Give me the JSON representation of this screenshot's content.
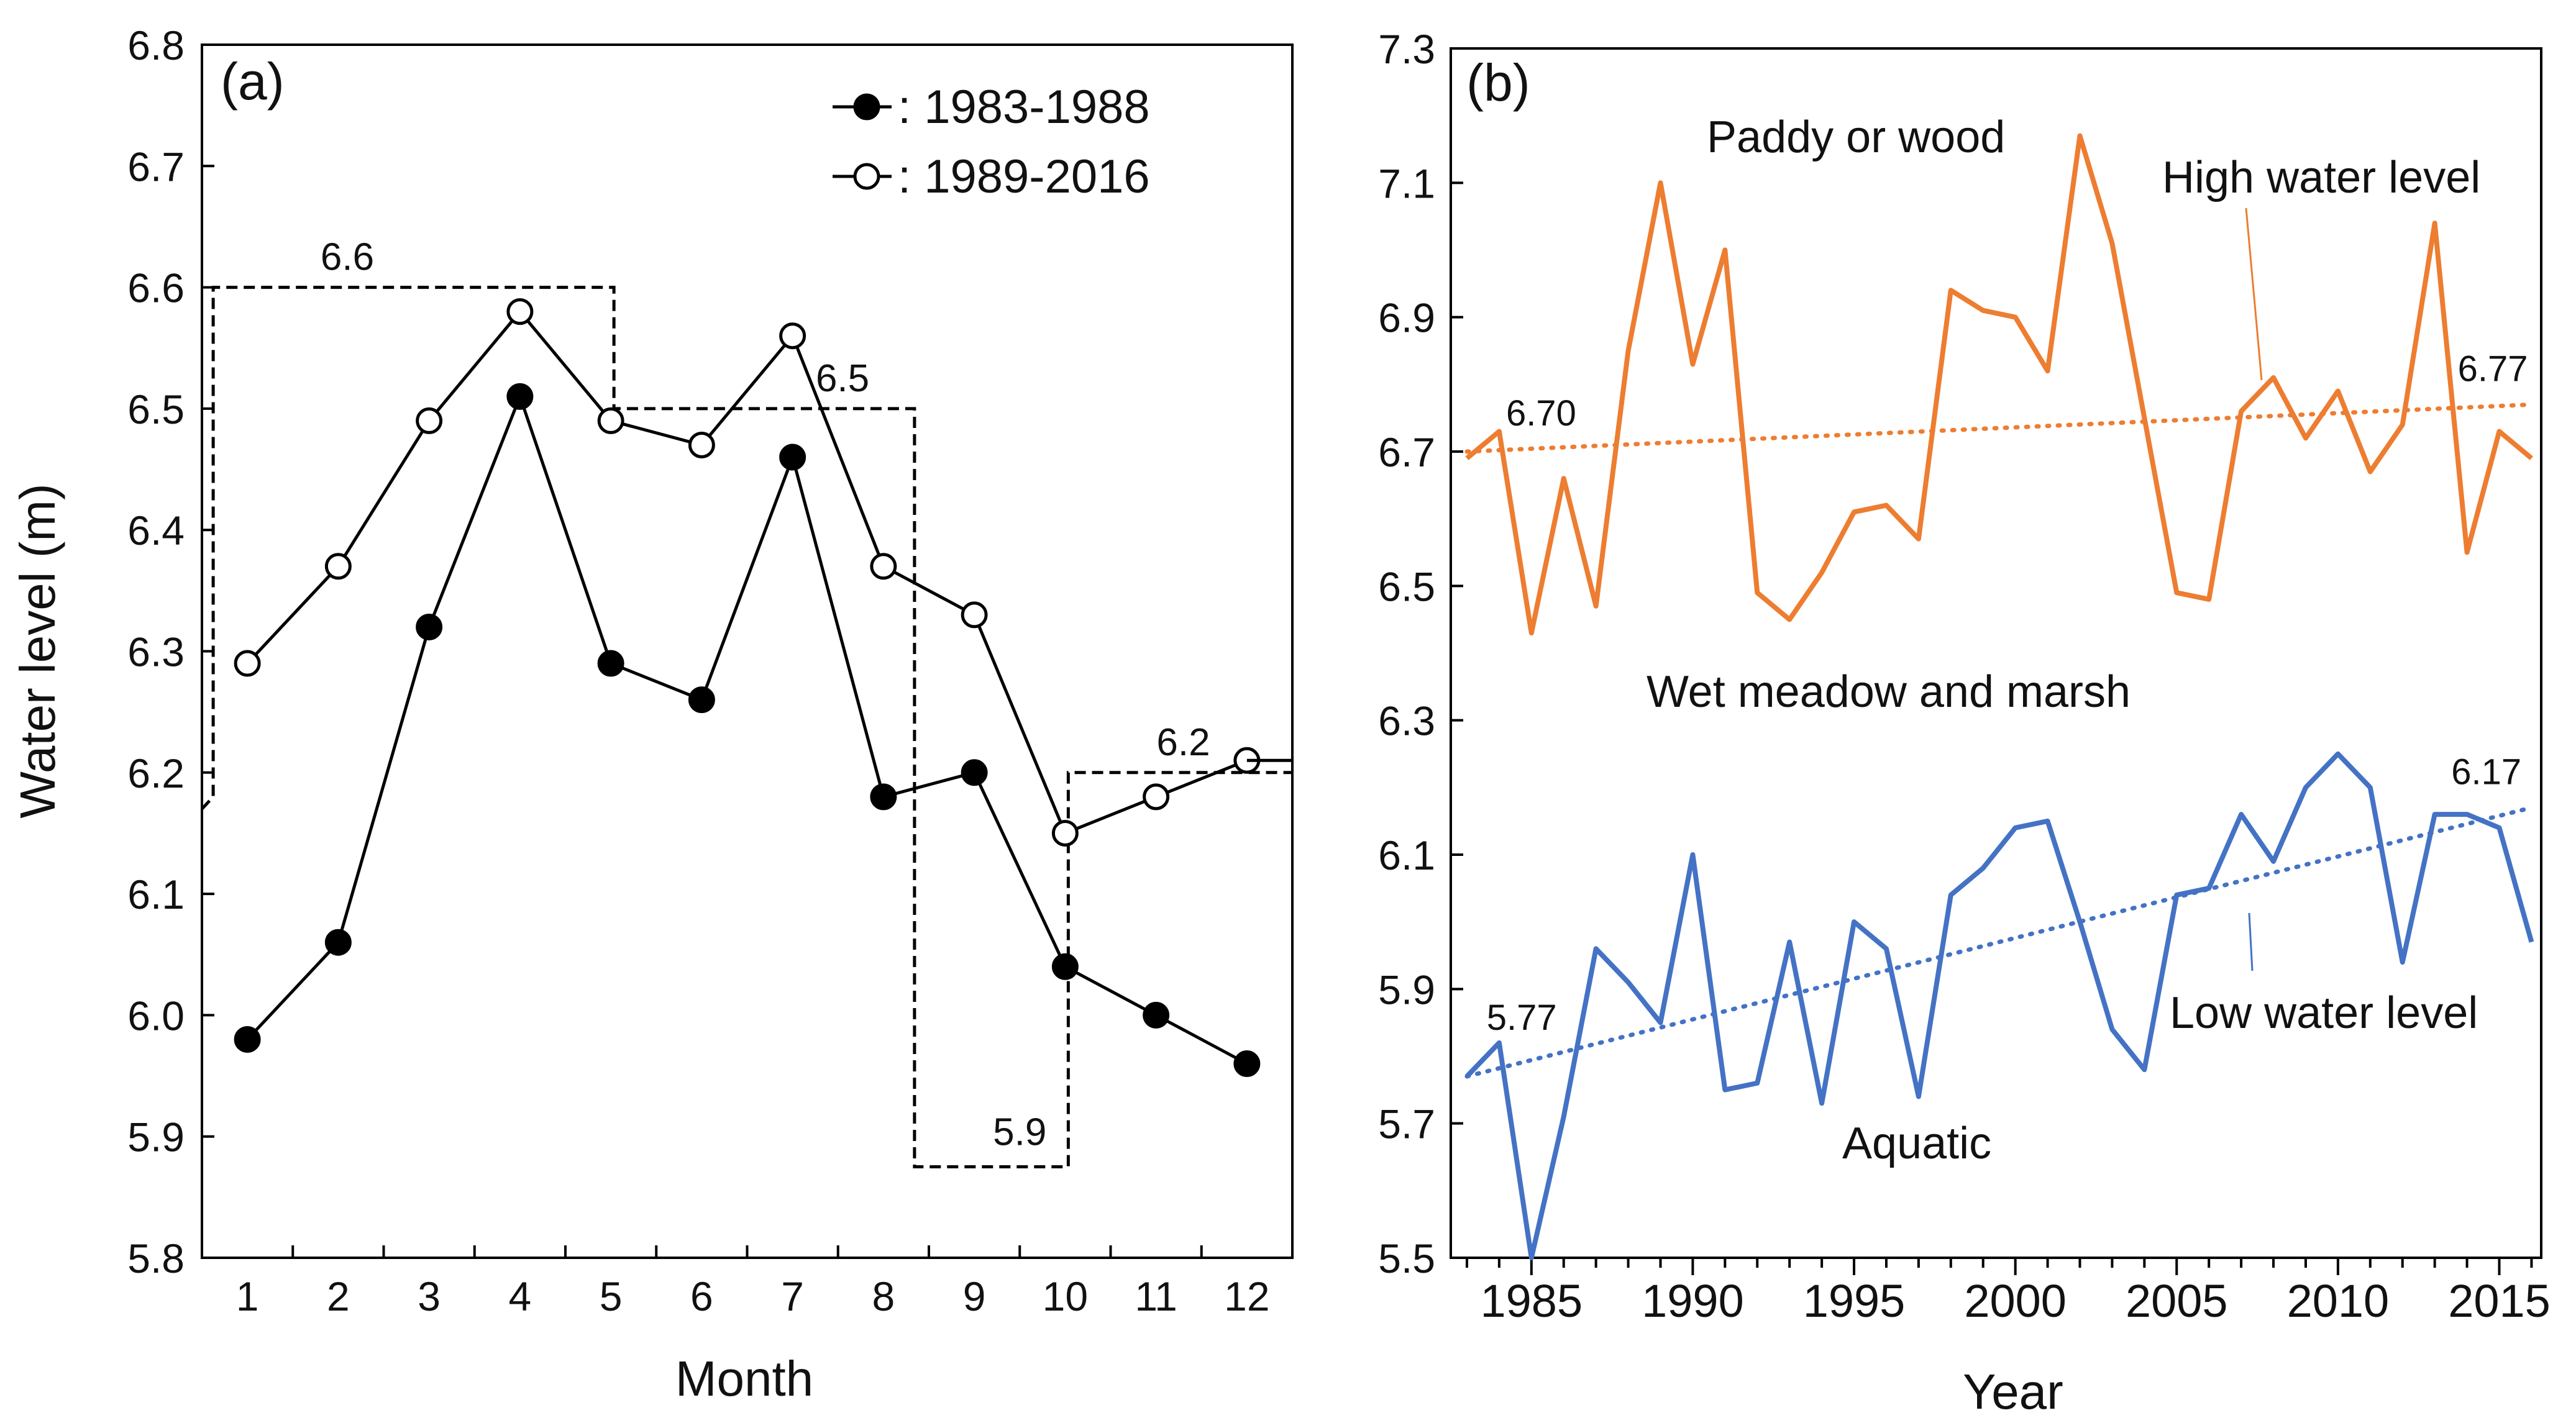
{
  "chart_data": [
    {
      "panel_label": "(a)",
      "type": "line",
      "xlabel": "Month",
      "ylabel": "Water level (m)",
      "ylim": [
        5.8,
        6.8
      ],
      "yticks": [
        "5.8",
        "5.9",
        "6.0",
        "6.1",
        "6.2",
        "6.3",
        "6.4",
        "6.5",
        "6.6",
        "6.7",
        "6.8"
      ],
      "categories": [
        "1",
        "2",
        "3",
        "4",
        "5",
        "6",
        "7",
        "8",
        "9",
        "10",
        "11",
        "12"
      ],
      "series": [
        {
          "name": "1983-1988",
          "legend_label": ": 1983-1988",
          "marker": "filled",
          "values": [
            5.98,
            6.06,
            6.32,
            6.51,
            6.29,
            6.26,
            6.46,
            6.18,
            6.2,
            6.04,
            6.0,
            5.96
          ]
        },
        {
          "name": "1989-2016",
          "legend_label": ": 1989-2016",
          "marker": "open",
          "values": [
            6.29,
            6.37,
            6.49,
            6.58,
            6.49,
            6.47,
            6.56,
            6.37,
            6.33,
            6.15,
            6.18,
            6.21
          ]
        }
      ],
      "reference_levels": [
        {
          "label": "6.6",
          "value": 6.6,
          "months": [
            1,
            5
          ]
        },
        {
          "label": "6.5",
          "value": 6.5,
          "months": [
            6,
            8
          ]
        },
        {
          "label": "5.9",
          "value": 5.875,
          "months": [
            9,
            10
          ]
        },
        {
          "label": "6.2",
          "value": 6.2,
          "months": [
            11,
            12
          ]
        }
      ]
    },
    {
      "panel_label": "(b)",
      "type": "line",
      "xlabel": "Year",
      "ylabel": "",
      "xlim": [
        1982.5,
        2016.3
      ],
      "xticks": [
        "1985",
        "1990",
        "1995",
        "2000",
        "2005",
        "2010",
        "2015"
      ],
      "ylim": [
        5.5,
        7.3
      ],
      "yticks": [
        "5.5",
        "5.7",
        "5.9",
        "6.1",
        "6.3",
        "6.5",
        "6.7",
        "6.9",
        "7.1",
        "7.3"
      ],
      "x": [
        1983,
        1984,
        1985,
        1986,
        1987,
        1988,
        1989,
        1990,
        1991,
        1992,
        1993,
        1994,
        1995,
        1996,
        1997,
        1998,
        1999,
        2000,
        2001,
        2002,
        2003,
        2004,
        2005,
        2006,
        2007,
        2008,
        2009,
        2010,
        2011,
        2012,
        2013,
        2014,
        2015,
        2016
      ],
      "series": [
        {
          "name": "High water level",
          "color": "#ed7d31",
          "values": [
            6.69,
            6.73,
            6.43,
            6.66,
            6.47,
            6.85,
            7.1,
            6.83,
            7.0,
            6.49,
            6.45,
            6.52,
            6.61,
            6.62,
            6.57,
            6.94,
            6.91,
            6.9,
            6.82,
            7.17,
            7.01,
            6.75,
            6.49,
            6.48,
            6.76,
            6.81,
            6.72,
            6.79,
            6.67,
            6.74,
            7.04,
            6.55,
            6.73,
            6.69
          ]
        },
        {
          "name": "Low water level",
          "color": "#4472c4",
          "values": [
            5.77,
            5.82,
            5.5,
            5.71,
            5.96,
            5.91,
            5.85,
            6.1,
            5.75,
            5.76,
            5.97,
            5.73,
            6.0,
            5.96,
            5.74,
            6.04,
            6.08,
            6.14,
            6.15,
            6.0,
            5.84,
            5.78,
            6.04,
            6.05,
            6.16,
            6.09,
            6.2,
            6.25,
            6.2,
            5.94,
            6.16,
            6.16,
            6.14,
            5.97
          ]
        }
      ],
      "trendlines": [
        {
          "series": "High water level",
          "start": [
            1983,
            6.7
          ],
          "end": [
            2016,
            6.77
          ],
          "start_label": "6.70",
          "end_label": "6.77"
        },
        {
          "series": "Low water level",
          "start": [
            1983,
            5.77
          ],
          "end": [
            2016,
            6.17
          ],
          "start_label": "5.77",
          "end_label": "6.17"
        }
      ],
      "annotations": {
        "paddy": "Paddy or wood",
        "high": "High water level",
        "wet": "Wet meadow and marsh",
        "low": "Low water level",
        "aquatic": "Aquatic"
      }
    }
  ]
}
